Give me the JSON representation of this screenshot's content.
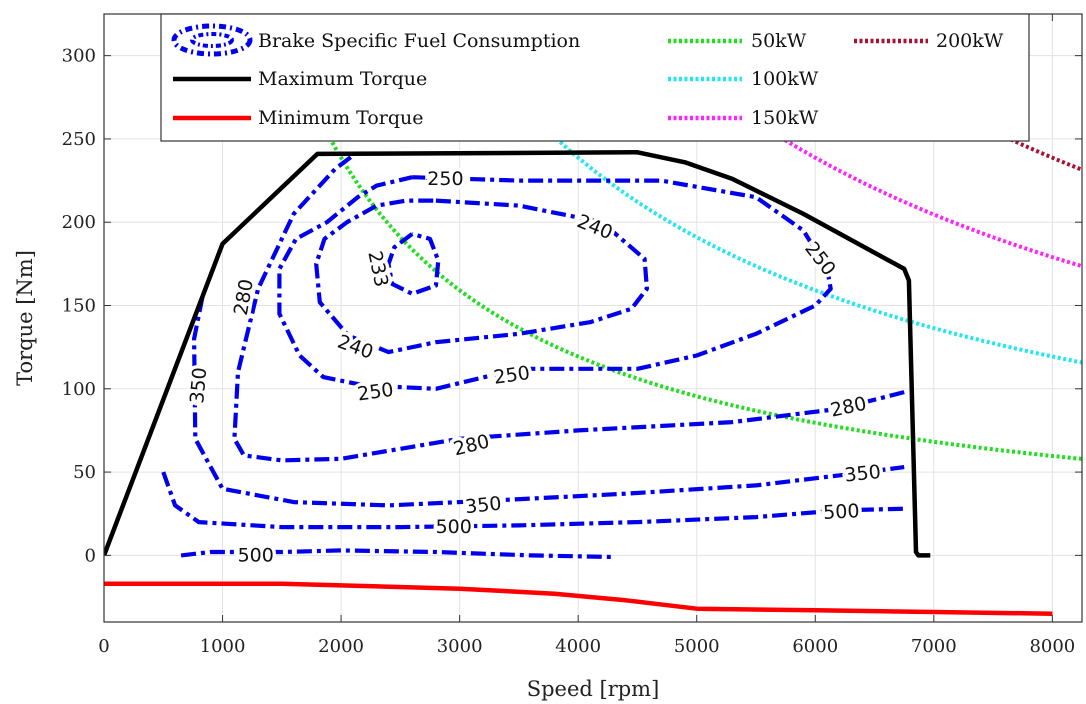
{
  "chart_data": {
    "type": "line",
    "title": "",
    "xlabel": "Speed [rpm]",
    "ylabel": "Torque [Nm]",
    "xlim": [
      0,
      8250
    ],
    "ylim": [
      -40,
      325
    ],
    "xticks": [
      0,
      1000,
      2000,
      3000,
      4000,
      5000,
      6000,
      7000,
      8000
    ],
    "yticks": [
      0,
      50,
      100,
      150,
      200,
      250,
      300
    ],
    "grid": true,
    "legend_position": "top",
    "colors": {
      "max_torque": "#000000",
      "min_torque": "#ff0000",
      "bsfc": "#0000ee",
      "p50": "#22dd22",
      "p100": "#22e6f0",
      "p150": "#ff22ff",
      "p200": "#aa1030"
    },
    "series": [
      {
        "key": "max_torque",
        "name": "Maximum Torque",
        "style": "solid",
        "x": [
          0,
          1000,
          1800,
          4500,
          4900,
          5300,
          5900,
          6750,
          6790,
          6850,
          6870,
          6970
        ],
        "y": [
          0,
          187,
          241,
          242,
          236,
          226,
          205,
          172,
          165,
          2,
          0,
          0
        ]
      },
      {
        "key": "min_torque",
        "name": "Minimum Torque",
        "style": "solid",
        "x": [
          0,
          1000,
          1500,
          2000,
          3000,
          3800,
          4400,
          5000,
          6000,
          7000,
          8000
        ],
        "y": [
          -17,
          -17,
          -17,
          -18,
          -20,
          -23,
          -27,
          -32,
          -33,
          -34,
          -35
        ]
      },
      {
        "key": "bsfc",
        "name": "Brake Specific Fuel Consumption",
        "style": "dashdot",
        "contours": [
          {
            "level": "233",
            "x": [
              2600,
              2450,
              2400,
              2430,
              2600,
              2800,
              2820,
              2750,
              2600
            ],
            "y": [
              193,
              185,
              175,
              163,
              157,
              162,
              177,
              190,
              193
            ]
          },
          {
            "level": "240",
            "x": [
              2800,
              3500,
              4200,
              4560,
              4580,
              4450,
              4100,
              3500,
              2800,
              2400,
              2060,
              1820,
              1790,
              1860,
              2050,
              2300,
              2550,
              2800
            ],
            "y": [
              213,
              210,
              200,
              178,
              160,
              148,
              140,
              133,
              128,
              122,
              132,
              152,
              175,
              190,
              200,
              210,
              213,
              213
            ]
          },
          {
            "level": "250",
            "x": [
              2600,
              3500,
              4700,
              5500,
              5900,
              6100,
              6130,
              6000,
              5500,
              5000,
              4500,
              3500,
              2800,
              2200,
              1850,
              1650,
              1480,
              1480,
              1620,
              1880,
              2140,
              2300,
              2600
            ],
            "y": [
              227,
              225,
              225,
              215,
              195,
              172,
              160,
              150,
              133,
              120,
              112,
              112,
              100,
              102,
              107,
              120,
              145,
              172,
              190,
              200,
              215,
              222,
              227
            ]
          },
          {
            "level": "280",
            "x": [
              6750,
              6200,
              5300,
              4000,
              3000,
              2000,
              1500,
              1180,
              1100,
              1130,
              1300,
              1600,
              1950,
              2100
            ],
            "y": [
              98,
              88,
              80,
              75,
              70,
              58,
              57,
              60,
              70,
              110,
              160,
              205,
              232,
              240
            ]
          },
          {
            "level": "350",
            "x": [
              830,
              760,
              770,
              1000,
              1600,
              2400,
              3300,
              4400,
              5500,
              6200,
              6750
            ],
            "y": [
              155,
              130,
              70,
              40,
              32,
              30,
              33,
              37,
              42,
              48,
              53
            ]
          },
          {
            "level": "500",
            "x": [
              500,
              600,
              800,
              1500,
              2500,
              3500,
              4500,
              5500,
              6200,
              6750
            ],
            "y": [
              50,
              30,
              20,
              17,
              17,
              18,
              20,
              23,
              27,
              28
            ]
          },
          {
            "level": "500",
            "x": [
              650,
              900,
              1500,
              2000,
              2800,
              3600,
              4300
            ],
            "y": [
              0,
              2,
              2,
              3,
              2,
              0,
              -1
            ]
          }
        ],
        "labels": [
          {
            "text": "233",
            "x": 2310,
            "y": 172,
            "angle": 78
          },
          {
            "text": "240",
            "x": 4140,
            "y": 197,
            "angle": 22
          },
          {
            "text": "240",
            "x": 2120,
            "y": 125,
            "angle": 20
          },
          {
            "text": "250",
            "x": 2880,
            "y": 226,
            "angle": 0
          },
          {
            "text": "250",
            "x": 6040,
            "y": 178,
            "angle": 52
          },
          {
            "text": "250",
            "x": 2290,
            "y": 98,
            "angle": -8
          },
          {
            "text": "250",
            "x": 3440,
            "y": 108,
            "angle": -8
          },
          {
            "text": "280",
            "x": 1180,
            "y": 155,
            "angle": -80
          },
          {
            "text": "280",
            "x": 3100,
            "y": 66,
            "angle": -14
          },
          {
            "text": "280",
            "x": 6280,
            "y": 89,
            "angle": -12
          },
          {
            "text": "350",
            "x": 800,
            "y": 102,
            "angle": -85
          },
          {
            "text": "350",
            "x": 3200,
            "y": 30,
            "angle": -6
          },
          {
            "text": "350",
            "x": 6400,
            "y": 49,
            "angle": -6
          },
          {
            "text": "500",
            "x": 2950,
            "y": 17,
            "angle": 0
          },
          {
            "text": "500",
            "x": 6220,
            "y": 26,
            "angle": -3
          },
          {
            "text": "500",
            "x": 1280,
            "y": 0,
            "angle": 0
          }
        ]
      },
      {
        "key": "p50",
        "name": "50kW",
        "style": "dotted",
        "power_kw": 50
      },
      {
        "key": "p100",
        "name": "100kW",
        "style": "dotted",
        "power_kw": 100
      },
      {
        "key": "p150",
        "name": "150kW",
        "style": "dotted",
        "power_kw": 150
      },
      {
        "key": "p200",
        "name": "200kW",
        "style": "dotted",
        "power_kw": 200
      }
    ]
  }
}
